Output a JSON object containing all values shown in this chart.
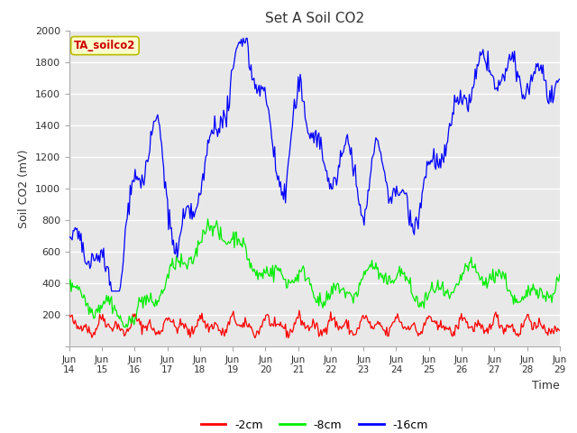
{
  "title": "Set A Soil CO2",
  "ylabel": "Soil CO2 (mV)",
  "xlabel": "Time",
  "legend_label": "TA_soilco2",
  "series_labels": [
    "-2cm",
    "-8cm",
    "-16cm"
  ],
  "series_colors": [
    "#ff0000",
    "#00ee00",
    "#0000ff"
  ],
  "ylim": [
    0,
    2000
  ],
  "yticks": [
    0,
    200,
    400,
    600,
    800,
    1000,
    1200,
    1400,
    1600,
    1800,
    2000
  ],
  "xtick_labels": [
    "Jun\n14",
    "Jun\n15",
    "Jun\n16",
    "Jun\n17",
    "Jun\n18",
    "Jun\n19",
    "Jun\n20",
    "Jun\n21",
    "Jun\n22",
    "Jun\n23",
    "Jun\n24",
    "Jun\n25",
    "Jun\n26",
    "Jun\n27",
    "Jun\n28",
    "Jun\n29"
  ],
  "plot_bg_color": "#e8e8e8",
  "fig_bg_color": "#ffffff",
  "grid_color": "#ffffff",
  "legend_box_facecolor": "#ffffcc",
  "legend_box_edgecolor": "#bbbb00",
  "legend_text_color": "#cc0000",
  "n_points": 500,
  "seed": 42
}
